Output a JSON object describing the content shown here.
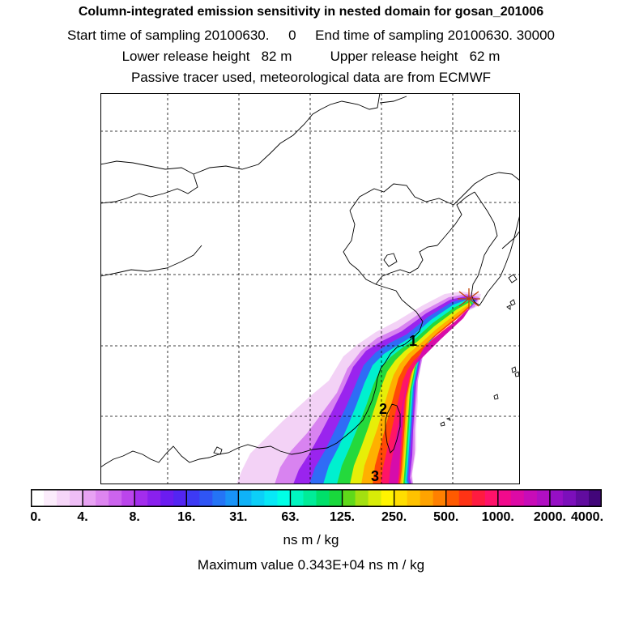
{
  "header": {
    "title": "Column-integrated emission sensitivity in nested domain for gosan_201006",
    "sampling_line": "Start time of sampling 20100630.     0     End time of sampling 20100630. 30000",
    "release_line": "Lower release height   82 m          Upper release height   62 m",
    "tracer_line": "Passive tracer used, meteorological data are from ECMWF"
  },
  "map": {
    "day_markers": [
      "1",
      "2",
      "3"
    ],
    "receptor_marker": "receptor-star"
  },
  "colorbar": {
    "labels": [
      "0.",
      "4.",
      "8.",
      "16.",
      "31.",
      "63.",
      "125.",
      "250.",
      "500.",
      "1000.",
      "2000.",
      "4000."
    ],
    "colors": [
      "#ffffff",
      "#fbecfb",
      "#f6d6f8",
      "#efbef6",
      "#e8a2f3",
      "#dd85f0",
      "#cc64ee",
      "#bb45ec",
      "#a32ded",
      "#8a20ee",
      "#6b1cf0",
      "#5325f2",
      "#3d3af4",
      "#2f55f5",
      "#2474f6",
      "#1893f7",
      "#0fb2f8",
      "#0ccff8",
      "#07e8f6",
      "#00ffe6",
      "#00f6c0",
      "#00ec98",
      "#00e06a",
      "#19d83c",
      "#5fd91a",
      "#a3e010",
      "#d8ec08",
      "#fff400",
      "#ffde00",
      "#ffc200",
      "#ffa300",
      "#ff8000",
      "#ff5a00",
      "#ff3315",
      "#ff1b40",
      "#ff126a",
      "#f20a8c",
      "#dd0aa6",
      "#c80cb8",
      "#b10fc3",
      "#960fc5",
      "#7c0fbb",
      "#610c9f",
      "#42067a"
    ],
    "units": "ns m / kg",
    "max_value": "Maximum value  0.343E+04 ns m / kg"
  }
}
